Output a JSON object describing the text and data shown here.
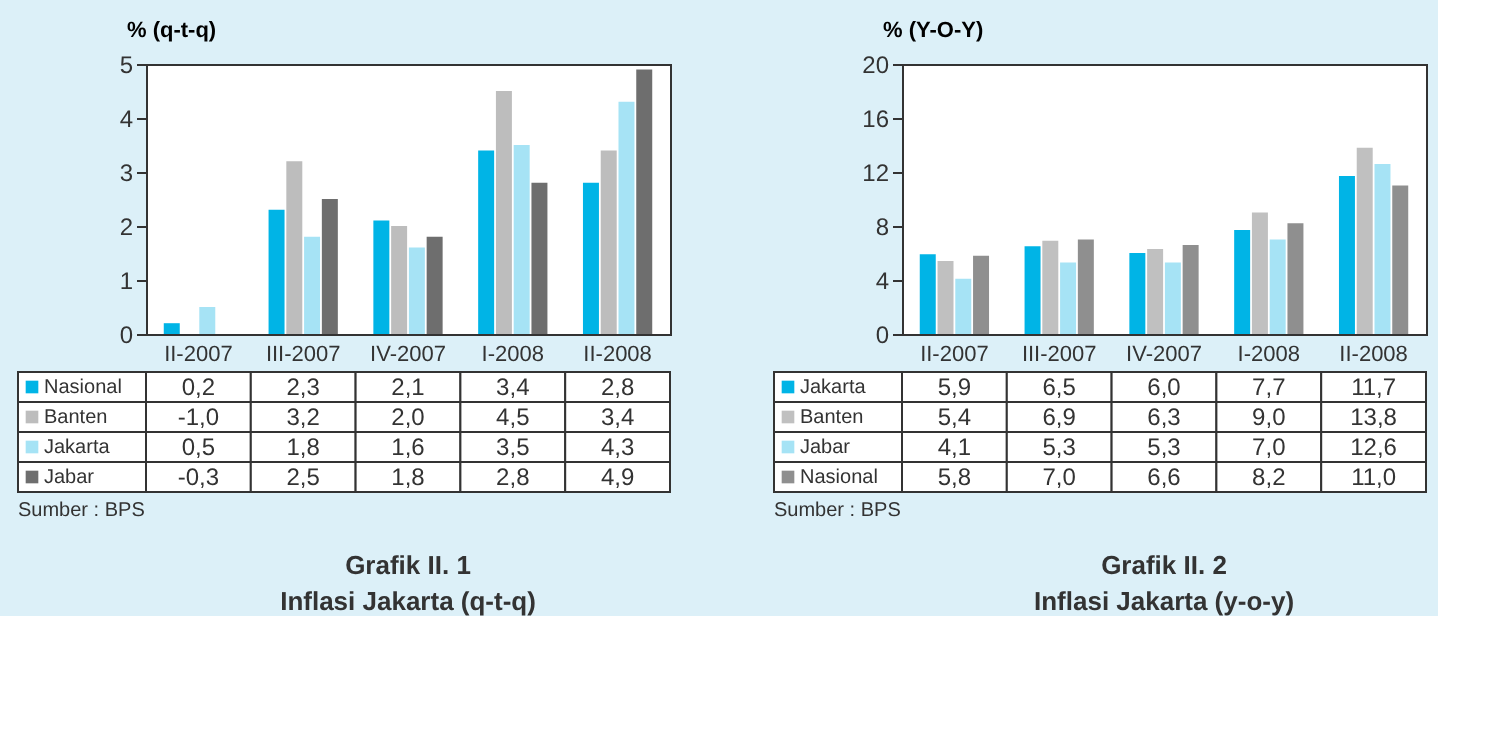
{
  "chart_data": [
    {
      "type": "bar",
      "title": "Grafik II. 1",
      "subtitle": "Inflasi Jakarta  (q-t-q)",
      "ylabel": "% (q-t-q)",
      "categories": [
        "II-2007",
        "III-2007",
        "IV-2007",
        "I-2008",
        "II-2008"
      ],
      "series": [
        {
          "name": "Nasional",
          "color": "#00b4e6",
          "values": [
            0.2,
            2.3,
            2.1,
            3.4,
            2.8
          ],
          "value_labels": [
            "0,2",
            "2,3",
            "2,1",
            "3,4",
            "2,8"
          ]
        },
        {
          "name": "Banten",
          "color": "#bdbdbd",
          "values": [
            null,
            3.2,
            2.0,
            4.5,
            3.4
          ],
          "value_labels": [
            "-1,0",
            "3,2",
            "2,0",
            "4,5",
            "3,4"
          ]
        },
        {
          "name": "Jakarta",
          "color": "#a6e3f5",
          "values": [
            0.5,
            1.8,
            1.6,
            3.5,
            4.3
          ],
          "value_labels": [
            "0,5",
            "1,8",
            "1,6",
            "3,5",
            "4,3"
          ]
        },
        {
          "name": "Jabar",
          "color": "#6e6e6e",
          "values": [
            null,
            2.5,
            1.8,
            2.8,
            4.9
          ],
          "value_labels": [
            "-0,3",
            "2,5",
            "1,8",
            "2,8",
            "4,9"
          ]
        }
      ],
      "ylim": [
        0,
        5
      ],
      "yticks": [
        0,
        1,
        2,
        3,
        4,
        5
      ],
      "grid": false,
      "legend": "bottom",
      "annotations": [
        "Sumber : BPS"
      ]
    },
    {
      "type": "bar",
      "title": "Grafik II. 2",
      "subtitle": "Inflasi Jakarta  (y-o-y)",
      "ylabel": "% (Y-O-Y)",
      "categories": [
        "II-2007",
        "III-2007",
        "IV-2007",
        "I-2008",
        "II-2008"
      ],
      "series": [
        {
          "name": "Jakarta",
          "color": "#00b4e6",
          "values": [
            5.9,
            6.5,
            6.0,
            7.7,
            11.7
          ],
          "value_labels": [
            "5,9",
            "6,5",
            "6,0",
            "7,7",
            "11,7"
          ]
        },
        {
          "name": "Banten",
          "color": "#c0c0c0",
          "values": [
            5.4,
            6.9,
            6.3,
            9.0,
            13.8
          ],
          "value_labels": [
            "5,4",
            "6,9",
            "6,3",
            "9,0",
            "13,8"
          ]
        },
        {
          "name": "Jabar",
          "color": "#a6e3f5",
          "values": [
            4.1,
            5.3,
            5.3,
            7.0,
            12.6
          ],
          "value_labels": [
            "4,1",
            "5,3",
            "5,3",
            "7,0",
            "12,6"
          ]
        },
        {
          "name": "Nasional",
          "color": "#8f8f8f",
          "values": [
            5.8,
            7.0,
            6.6,
            8.2,
            11.0
          ],
          "value_labels": [
            "5,8",
            "7,0",
            "6,6",
            "8,2",
            "11,0"
          ]
        }
      ],
      "ylim": [
        0,
        20
      ],
      "yticks": [
        0,
        4,
        8,
        12,
        16,
        20
      ],
      "grid": false,
      "legend": "bottom",
      "annotations": [
        "Sumber : BPS"
      ]
    }
  ]
}
